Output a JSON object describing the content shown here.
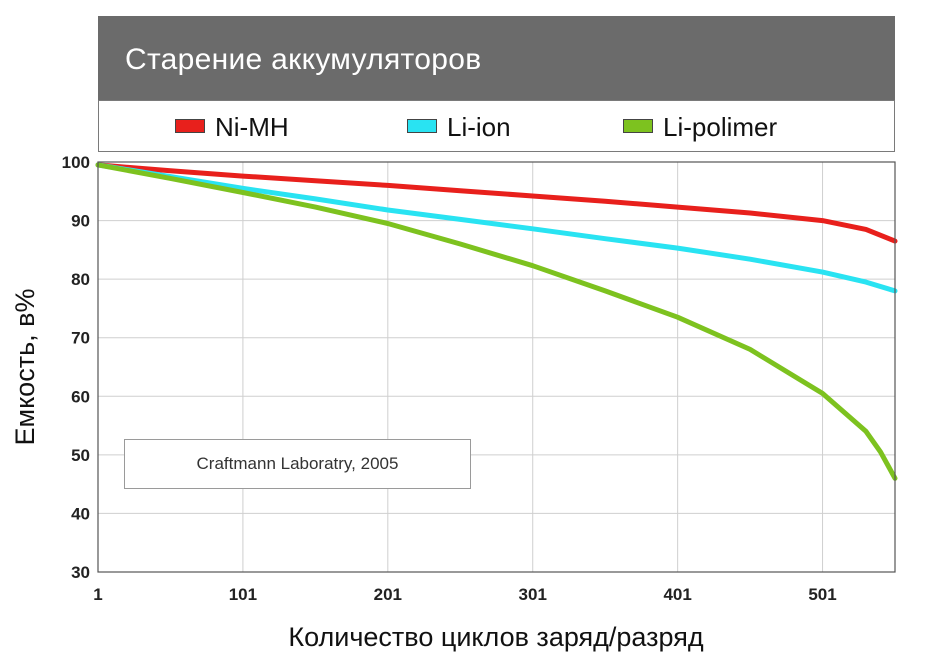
{
  "chart_data": {
    "type": "line",
    "title": "Старение аккумуляторов",
    "xlabel": "Количество циклов заряд/разряд",
    "ylabel": "Емкость, в%",
    "xlim": [
      1,
      551
    ],
    "ylim": [
      30,
      100
    ],
    "x_ticks": [
      1,
      101,
      201,
      301,
      401,
      501
    ],
    "y_ticks": [
      30,
      40,
      50,
      60,
      70,
      80,
      90,
      100
    ],
    "grid": true,
    "legend_position": "top",
    "annotation": "Craftmann Laboratry, 2005",
    "series": [
      {
        "name": "Ni-MH",
        "color": "#e8201c",
        "x": [
          1,
          51,
          101,
          151,
          201,
          251,
          301,
          351,
          401,
          451,
          501,
          531,
          551
        ],
        "y": [
          99.5,
          98.5,
          97.6,
          96.8,
          96.0,
          95.1,
          94.2,
          93.3,
          92.3,
          91.3,
          90.0,
          88.5,
          86.5
        ]
      },
      {
        "name": "Li-ion",
        "color": "#29e3f2",
        "x": [
          1,
          51,
          101,
          151,
          201,
          251,
          301,
          351,
          401,
          451,
          501,
          531,
          551
        ],
        "y": [
          99.5,
          97.5,
          95.5,
          93.7,
          91.8,
          90.2,
          88.6,
          86.9,
          85.3,
          83.4,
          81.2,
          79.5,
          78.0
        ]
      },
      {
        "name": "Li-polimer",
        "color": "#7dc21f",
        "x": [
          1,
          51,
          101,
          151,
          201,
          251,
          301,
          351,
          401,
          451,
          501,
          531,
          541,
          551
        ],
        "y": [
          99.5,
          97.2,
          94.8,
          92.3,
          89.5,
          86.0,
          82.3,
          78.0,
          73.5,
          68.0,
          60.5,
          54.0,
          50.5,
          46.0
        ]
      }
    ]
  }
}
